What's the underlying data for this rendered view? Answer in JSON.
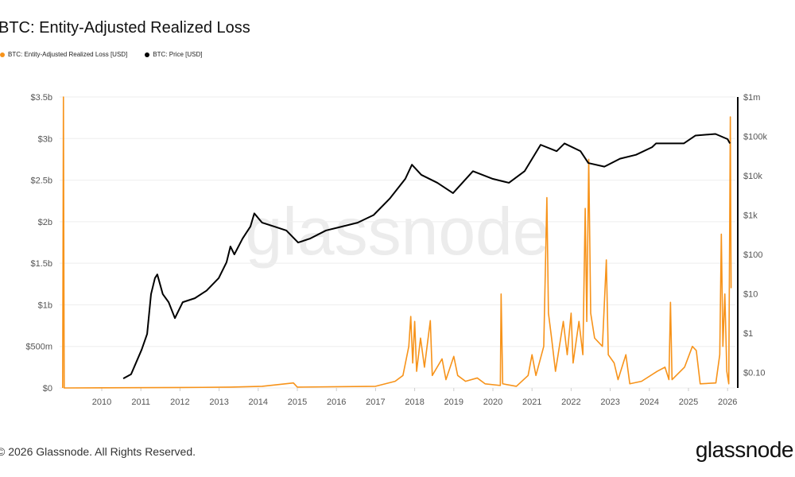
{
  "title": "BTC: Entity-Adjusted Realized Loss",
  "footer": "© 2026 Glassnode. All Rights Reserved.",
  "logo": "glassnode",
  "watermark": "glassnode",
  "chart_data": {
    "type": "line",
    "title": "BTC: Entity-Adjusted Realized Loss",
    "legend_position": "top-left",
    "grid": true,
    "x_ticks": [
      "2010",
      "2011",
      "2012",
      "2013",
      "2014",
      "2015",
      "2016",
      "2017",
      "2018",
      "2019",
      "2020",
      "2021",
      "2022",
      "2023",
      "2024",
      "2025",
      "2026"
    ],
    "xlim": [
      2009,
      2026.2
    ],
    "y_left": {
      "ticks": [
        "$0",
        "$500m",
        "$1b",
        "$1.5b",
        "$2b",
        "$2.5b",
        "$3b",
        "$3.5b"
      ],
      "lim": [
        0,
        3.5
      ],
      "unit": "USD billions"
    },
    "y_right": {
      "scale": "log",
      "ticks": [
        "$0.10",
        "$1",
        "$10",
        "$100",
        "$1k",
        "$10k",
        "$100k",
        "$1m"
      ],
      "lim": [
        0.05,
        1000000
      ]
    },
    "series": [
      {
        "name": "BTC: Entity-Adjusted Realized Loss [USD]",
        "color": "#f7931a",
        "axis": "left",
        "unit": "USD billions",
        "points": [
          [
            2009,
            0
          ],
          [
            2009.02,
            3.5
          ],
          [
            2009.04,
            0
          ],
          [
            2012.0,
            0.005
          ],
          [
            2013.3,
            0.01
          ],
          [
            2014.1,
            0.02
          ],
          [
            2014.9,
            0.06
          ],
          [
            2015.0,
            0.01
          ],
          [
            2017.0,
            0.02
          ],
          [
            2017.5,
            0.08
          ],
          [
            2017.7,
            0.15
          ],
          [
            2017.85,
            0.5
          ],
          [
            2017.9,
            0.86
          ],
          [
            2017.95,
            0.3
          ],
          [
            2018.0,
            0.8
          ],
          [
            2018.05,
            0.2
          ],
          [
            2018.15,
            0.6
          ],
          [
            2018.25,
            0.25
          ],
          [
            2018.4,
            0.81
          ],
          [
            2018.45,
            0.15
          ],
          [
            2018.7,
            0.35
          ],
          [
            2018.8,
            0.1
          ],
          [
            2019.0,
            0.38
          ],
          [
            2019.1,
            0.15
          ],
          [
            2019.3,
            0.08
          ],
          [
            2019.6,
            0.12
          ],
          [
            2019.8,
            0.05
          ],
          [
            2020.19,
            0.03
          ],
          [
            2020.21,
            1.13
          ],
          [
            2020.25,
            0.05
          ],
          [
            2020.6,
            0.02
          ],
          [
            2020.9,
            0.15
          ],
          [
            2021.0,
            0.4
          ],
          [
            2021.1,
            0.15
          ],
          [
            2021.3,
            0.5
          ],
          [
            2021.38,
            2.29
          ],
          [
            2021.42,
            0.9
          ],
          [
            2021.5,
            0.6
          ],
          [
            2021.6,
            0.2
          ],
          [
            2021.8,
            0.8
          ],
          [
            2021.9,
            0.4
          ],
          [
            2022.0,
            0.9
          ],
          [
            2022.05,
            0.3
          ],
          [
            2022.2,
            0.8
          ],
          [
            2022.3,
            0.4
          ],
          [
            2022.36,
            2.16
          ],
          [
            2022.4,
            0.8
          ],
          [
            2022.45,
            2.75
          ],
          [
            2022.5,
            0.9
          ],
          [
            2022.6,
            0.6
          ],
          [
            2022.8,
            0.5
          ],
          [
            2022.9,
            1.54
          ],
          [
            2022.95,
            0.4
          ],
          [
            2023.1,
            0.3
          ],
          [
            2023.2,
            0.1
          ],
          [
            2023.4,
            0.4
          ],
          [
            2023.5,
            0.05
          ],
          [
            2023.8,
            0.08
          ],
          [
            2024.2,
            0.2
          ],
          [
            2024.4,
            0.25
          ],
          [
            2024.5,
            0.1
          ],
          [
            2024.54,
            1.03
          ],
          [
            2024.58,
            0.1
          ],
          [
            2024.9,
            0.25
          ],
          [
            2025.1,
            0.5
          ],
          [
            2025.2,
            0.45
          ],
          [
            2025.3,
            0.05
          ],
          [
            2025.7,
            0.06
          ],
          [
            2025.8,
            0.4
          ],
          [
            2025.84,
            1.85
          ],
          [
            2025.88,
            0.5
          ],
          [
            2025.93,
            1.13
          ],
          [
            2025.98,
            0.2
          ],
          [
            2026.03,
            0.05
          ],
          [
            2026.07,
            3.26
          ],
          [
            2026.09,
            1.2
          ]
        ]
      },
      {
        "name": "BTC: Price [USD]",
        "color": "#000000",
        "axis": "right",
        "points": [
          [
            2010.55,
            0.07
          ],
          [
            2010.75,
            0.09
          ],
          [
            2010.89,
            0.19
          ],
          [
            2011.02,
            0.38
          ],
          [
            2011.16,
            0.95
          ],
          [
            2011.26,
            9.8
          ],
          [
            2011.36,
            25
          ],
          [
            2011.42,
            31
          ],
          [
            2011.56,
            9.8
          ],
          [
            2011.71,
            6.1
          ],
          [
            2011.87,
            2.4
          ],
          [
            2012.07,
            6.1
          ],
          [
            2012.38,
            7.7
          ],
          [
            2012.68,
            12
          ],
          [
            2012.99,
            25
          ],
          [
            2013.19,
            63
          ],
          [
            2013.29,
            159
          ],
          [
            2013.39,
            100
          ],
          [
            2013.6,
            253
          ],
          [
            2013.8,
            510
          ],
          [
            2013.9,
            1100
          ],
          [
            2014.1,
            640
          ],
          [
            2014.41,
            510
          ],
          [
            2014.72,
            405
          ],
          [
            2015.02,
            200
          ],
          [
            2015.33,
            253
          ],
          [
            2015.73,
            405
          ],
          [
            2016.14,
            510
          ],
          [
            2016.54,
            640
          ],
          [
            2016.95,
            1000
          ],
          [
            2017.36,
            2600
          ],
          [
            2017.76,
            8300
          ],
          [
            2017.93,
            19000
          ],
          [
            2018.17,
            10500
          ],
          [
            2018.58,
            6600
          ],
          [
            2018.98,
            3600
          ],
          [
            2019.49,
            13000
          ],
          [
            2020.0,
            8300
          ],
          [
            2020.41,
            6600
          ],
          [
            2020.81,
            13000
          ],
          [
            2021.22,
            61000
          ],
          [
            2021.63,
            42000
          ],
          [
            2021.83,
            66000
          ],
          [
            2022.24,
            42000
          ],
          [
            2022.44,
            21000
          ],
          [
            2022.85,
            17000
          ],
          [
            2023.25,
            27000
          ],
          [
            2023.66,
            34000
          ],
          [
            2024.07,
            53000
          ],
          [
            2024.17,
            66000
          ],
          [
            2024.88,
            66000
          ],
          [
            2025.18,
            105000
          ],
          [
            2025.69,
            115000
          ],
          [
            2026.0,
            85000
          ],
          [
            2026.06,
            66000
          ]
        ]
      }
    ]
  }
}
